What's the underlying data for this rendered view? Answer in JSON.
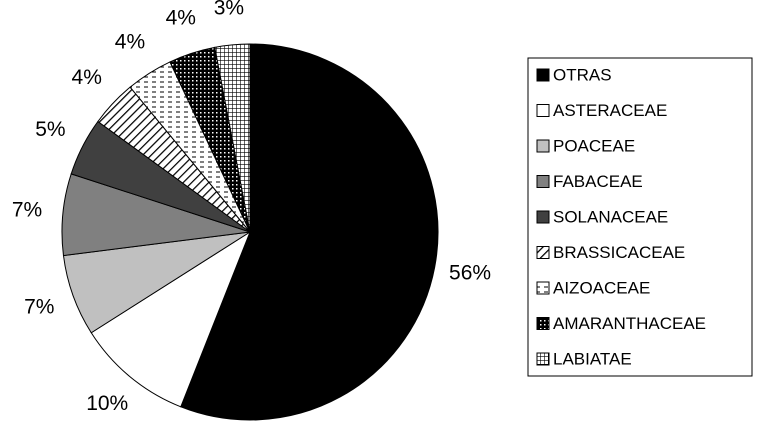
{
  "chart_data": {
    "type": "pie",
    "categories": [
      "OTRAS",
      "ASTERACEAE",
      "POACEAE",
      "FABACEAE",
      "SOLANACEAE",
      "BRASSICACEAE",
      "AIZOACEAE",
      "AMARANTHACEAE",
      "LABIATAE"
    ],
    "values": [
      56,
      10,
      7,
      7,
      5,
      4,
      4,
      4,
      3
    ],
    "value_labels": [
      "56%",
      "10%",
      "7%",
      "7%",
      "5%",
      "4%",
      "4%",
      "4%",
      "3%"
    ],
    "colors": [
      "#000000",
      "#ffffff",
      "#c0c0c0",
      "#808080",
      "#404040",
      "#ffffff",
      "#ffffff",
      "#000000",
      "#ffffff"
    ],
    "patterns": [
      null,
      null,
      null,
      null,
      null,
      "diagonal",
      "dashes",
      "dots",
      "grid"
    ],
    "legend": "right"
  }
}
